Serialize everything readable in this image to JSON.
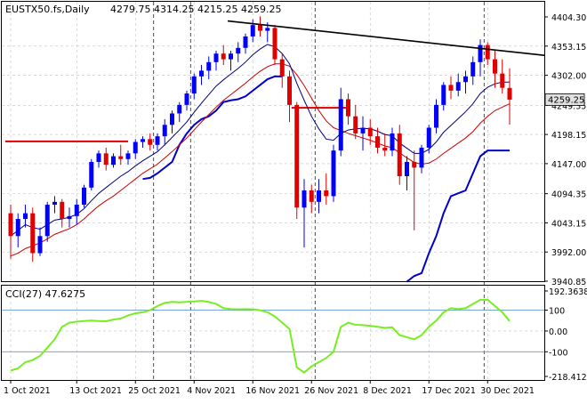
{
  "header": {
    "symbol": "EUSTX50.fs,Daily",
    "ohlc": "4279.75 4314.25 4215.25 4259.25",
    "indicator_label": "CCI(27) 47.6275"
  },
  "price_axis": {
    "ticks": [
      {
        "value": 4404.3,
        "label": "4404.30"
      },
      {
        "value": 4353.15,
        "label": "4353.15"
      },
      {
        "value": 4302.0,
        "label": "4302.00"
      },
      {
        "value": 4249.35,
        "label": "4249.35"
      },
      {
        "value": 4198.15,
        "label": "4198.15"
      },
      {
        "value": 4147.0,
        "label": "4147.00"
      },
      {
        "value": 4094.35,
        "label": "4094.35"
      },
      {
        "value": 4043.15,
        "label": "4043.15"
      },
      {
        "value": 3992.0,
        "label": "3992.00"
      },
      {
        "value": 3940.85,
        "label": "3940.85"
      }
    ],
    "current_price": {
      "value": 4259.25,
      "label": "4259.25"
    }
  },
  "cci_axis": {
    "ticks": [
      {
        "value": 192.3638,
        "label": "192.3638"
      },
      {
        "value": 100,
        "label": "100"
      },
      {
        "value": 0,
        "label": "0.00"
      },
      {
        "value": -100,
        "label": "-100"
      },
      {
        "value": -218.4121,
        "label": "-218.4121"
      }
    ]
  },
  "time_axis": {
    "labels": [
      {
        "index": 0,
        "label": "1 Oct 2021"
      },
      {
        "index": 9,
        "label": "13 Oct 2021"
      },
      {
        "index": 17,
        "label": "25 Oct 2021"
      },
      {
        "index": 25,
        "label": "4 Nov 2021"
      },
      {
        "index": 33,
        "label": "16 Nov 2021"
      },
      {
        "index": 41,
        "label": "26 Nov 2021"
      },
      {
        "index": 49,
        "label": "8 Dec 2021"
      },
      {
        "index": 57,
        "label": "17 Dec 2021"
      },
      {
        "index": 65,
        "label": "30 Dec 2021"
      }
    ]
  },
  "colors": {
    "bull": "#0000ff",
    "bear": "#e00000",
    "ma_fast": "#000080",
    "ma_slow": "#cc0000",
    "cci": "#77ee22",
    "grid": "#c0c0c0",
    "trendline": "#000000",
    "level_line": "#6699cc",
    "current_price_box": "#e0e0e0"
  },
  "chart_data": {
    "type": "candlestick",
    "candles": [
      [
        4060,
        4075,
        3980,
        4020
      ],
      [
        4020,
        4060,
        4000,
        4050
      ],
      [
        4050,
        4075,
        4035,
        4060
      ],
      [
        4060,
        4070,
        3975,
        3990
      ],
      [
        3990,
        4035,
        3985,
        4020
      ],
      [
        4020,
        4080,
        4010,
        4075
      ],
      [
        4075,
        4090,
        4060,
        4080
      ],
      [
        4080,
        4085,
        4035,
        4050
      ],
      [
        4050,
        4070,
        4035,
        4055
      ],
      [
        4055,
        4085,
        4040,
        4075
      ],
      [
        4075,
        4110,
        4070,
        4105
      ],
      [
        4105,
        4155,
        4100,
        4150
      ],
      [
        4150,
        4170,
        4140,
        4165
      ],
      [
        4165,
        4175,
        4135,
        4145
      ],
      [
        4145,
        4165,
        4140,
        4160
      ],
      [
        4160,
        4180,
        4145,
        4155
      ],
      [
        4155,
        4170,
        4145,
        4165
      ],
      [
        4165,
        4190,
        4155,
        4185
      ],
      [
        4185,
        4195,
        4175,
        4190
      ],
      [
        4190,
        4200,
        4170,
        4180
      ],
      [
        4180,
        4200,
        4170,
        4195
      ],
      [
        4195,
        4225,
        4180,
        4215
      ],
      [
        4215,
        4240,
        4200,
        4235
      ],
      [
        4235,
        4255,
        4220,
        4250
      ],
      [
        4250,
        4275,
        4240,
        4270
      ],
      [
        4270,
        4305,
        4260,
        4300
      ],
      [
        4300,
        4320,
        4285,
        4310
      ],
      [
        4310,
        4335,
        4295,
        4325
      ],
      [
        4325,
        4345,
        4310,
        4340
      ],
      [
        4340,
        4355,
        4320,
        4330
      ],
      [
        4330,
        4345,
        4310,
        4340
      ],
      [
        4340,
        4360,
        4325,
        4350
      ],
      [
        4350,
        4375,
        4340,
        4370
      ],
      [
        4370,
        4400,
        4360,
        4390
      ],
      [
        4390,
        4405,
        4370,
        4380
      ],
      [
        4380,
        4395,
        4360,
        4385
      ],
      [
        4385,
        4390,
        4320,
        4330
      ],
      [
        4330,
        4340,
        4280,
        4300
      ],
      [
        4300,
        4310,
        4220,
        4250
      ],
      [
        4250,
        4255,
        4050,
        4070
      ],
      [
        4070,
        4120,
        4000,
        4100
      ],
      [
        4100,
        4110,
        4060,
        4080
      ],
      [
        4080,
        4120,
        4060,
        4100
      ],
      [
        4100,
        4130,
        4075,
        4090
      ],
      [
        4090,
        4180,
        4080,
        4170
      ],
      [
        4170,
        4280,
        4160,
        4260
      ],
      [
        4260,
        4270,
        4215,
        4230
      ],
      [
        4230,
        4250,
        4190,
        4200
      ],
      [
        4200,
        4230,
        4170,
        4210
      ],
      [
        4210,
        4225,
        4180,
        4195
      ],
      [
        4195,
        4210,
        4165,
        4175
      ],
      [
        4175,
        4200,
        4160,
        4170
      ],
      [
        4170,
        4210,
        4160,
        4200
      ],
      [
        4200,
        4215,
        4110,
        4125
      ],
      [
        4125,
        4160,
        4100,
        4150
      ],
      [
        4150,
        4170,
        4030,
        4140
      ],
      [
        4140,
        4180,
        4130,
        4175
      ],
      [
        4175,
        4215,
        4165,
        4210
      ],
      [
        4210,
        4260,
        4200,
        4250
      ],
      [
        4250,
        4290,
        4240,
        4285
      ],
      [
        4285,
        4300,
        4260,
        4275
      ],
      [
        4275,
        4305,
        4265,
        4290
      ],
      [
        4290,
        4310,
        4270,
        4300
      ],
      [
        4300,
        4335,
        4285,
        4325
      ],
      [
        4325,
        4365,
        4300,
        4355
      ],
      [
        4355,
        4360,
        4320,
        4330
      ],
      [
        4330,
        4345,
        4280,
        4305
      ],
      [
        4305,
        4330,
        4270,
        4280
      ],
      [
        4279.75,
        4314.25,
        4215.25,
        4259.25
      ]
    ],
    "ma_fast": [
      4020,
      4030,
      4040,
      4035,
      4032,
      4040,
      4048,
      4050,
      4053,
      4058,
      4068,
      4082,
      4095,
      4105,
      4115,
      4125,
      4133,
      4143,
      4152,
      4160,
      4168,
      4180,
      4193,
      4206,
      4220,
      4237,
      4253,
      4268,
      4283,
      4294,
      4304,
      4314,
      4325,
      4338,
      4348,
      4356,
      4352,
      4340,
      4322,
      4288,
      4258,
      4230,
      4208,
      4190,
      4188,
      4200,
      4206,
      4208,
      4209,
      4208,
      4204,
      4198,
      4196,
      4183,
      4174,
      4165,
      4165,
      4172,
      4185,
      4202,
      4214,
      4226,
      4238,
      4252,
      4270,
      4281,
      4287,
      4290,
      4290
    ],
    "ma_slow": [
      3985,
      3990,
      3998,
      4003,
      4008,
      4015,
      4023,
      4028,
      4033,
      4040,
      4050,
      4062,
      4073,
      4082,
      4090,
      4100,
      4110,
      4120,
      4130,
      4138,
      4146,
      4157,
      4168,
      4180,
      4192,
      4206,
      4220,
      4233,
      4246,
      4258,
      4268,
      4278,
      4288,
      4299,
      4309,
      4317,
      4322,
      4322,
      4318,
      4303,
      4284,
      4262,
      4240,
      4222,
      4210,
      4205,
      4200,
      4196,
      4192,
      4188,
      4183,
      4178,
      4175,
      4166,
      4157,
      4149,
      4146,
      4148,
      4155,
      4165,
      4174,
      4183,
      4192,
      4203,
      4218,
      4230,
      4240,
      4246,
      4252
    ],
    "envelope": [
      null,
      null,
      null,
      null,
      null,
      null,
      null,
      null,
      null,
      null,
      null,
      null,
      null,
      null,
      null,
      null,
      null,
      null,
      4120,
      4122,
      4130,
      4140,
      4150,
      4180,
      4200,
      4215,
      4225,
      4230,
      4240,
      4255,
      4258,
      4260,
      4265,
      4275,
      4285,
      4295,
      4300,
      4300,
      null,
      null,
      null,
      null,
      null,
      null,
      null,
      null,
      null,
      null,
      null,
      null,
      null,
      null,
      null,
      null,
      3940,
      3950,
      3955,
      3990,
      4020,
      4060,
      4090,
      4095,
      4100,
      4130,
      4160,
      4170,
      4170,
      4170,
      4170
    ],
    "horizontal_levels": [
      {
        "value": 4186,
        "from": 0,
        "to": 16
      },
      {
        "value": 4245,
        "from": 39,
        "to": 46
      }
    ],
    "trendline": {
      "from": {
        "index": 32,
        "value": 4398
      },
      "to": {
        "index": 68,
        "value": 4340
      }
    },
    "cci": [
      -190,
      -180,
      -150,
      -140,
      -120,
      -80,
      -40,
      20,
      40,
      45,
      48,
      50,
      48,
      47,
      55,
      60,
      75,
      85,
      90,
      100,
      120,
      135,
      140,
      138,
      140,
      142,
      145,
      140,
      130,
      110,
      105,
      104,
      105,
      104,
      100,
      90,
      70,
      40,
      10,
      -175,
      -200,
      -170,
      -150,
      -130,
      -100,
      20,
      40,
      30,
      28,
      25,
      20,
      15,
      18,
      -20,
      -30,
      -40,
      -20,
      20,
      50,
      90,
      110,
      105,
      110,
      130,
      150,
      150,
      120,
      90,
      47.6275
    ]
  }
}
